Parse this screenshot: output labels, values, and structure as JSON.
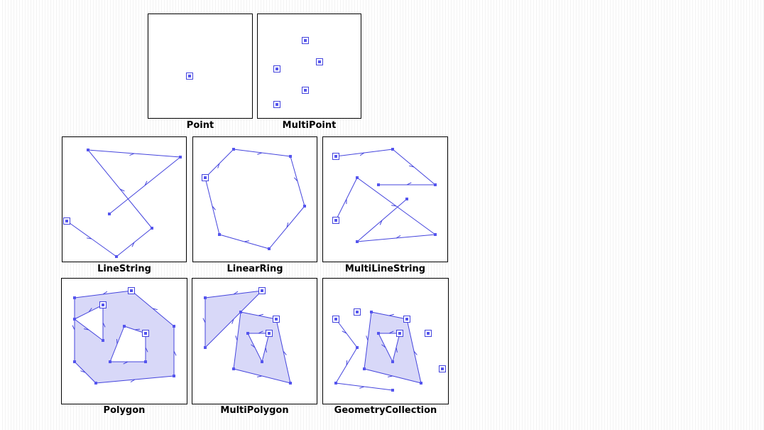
{
  "colors": {
    "stroke": "#4444dd",
    "fill": "#d8d8f8",
    "vertex": "#5555ee",
    "border": "#000000"
  },
  "panels": [
    {
      "id": "point",
      "label": "Point",
      "features": [
        {
          "type": "point",
          "coords": [
            [
              58,
              87
            ]
          ]
        }
      ]
    },
    {
      "id": "multipoint",
      "label": "MultiPoint",
      "features": [
        {
          "type": "point",
          "coords": [
            [
              67,
              37
            ],
            [
              87,
              67
            ],
            [
              27,
              77
            ],
            [
              67,
              107
            ],
            [
              27,
              127
            ]
          ]
        }
      ]
    },
    {
      "id": "linestring",
      "label": "LineString",
      "features": [
        {
          "type": "line",
          "coords": [
            [
              6,
              118
            ],
            [
              76,
              168
            ],
            [
              126,
              128
            ],
            [
              36,
              18
            ],
            [
              166,
              28
            ],
            [
              66,
              108
            ]
          ]
        }
      ]
    },
    {
      "id": "linearring",
      "label": "LinearRing",
      "features": [
        {
          "type": "line",
          "coords": [
            [
              17,
              57
            ],
            [
              57,
              17
            ],
            [
              137,
              27
            ],
            [
              157,
              97
            ],
            [
              107,
              157
            ],
            [
              37,
              137
            ],
            [
              17,
              57
            ]
          ]
        }
      ]
    },
    {
      "id": "multilinestring",
      "label": "MultiLineString",
      "features": [
        {
          "type": "line",
          "coords": [
            [
              18,
              27
            ],
            [
              98,
              17
            ],
            [
              158,
              67
            ],
            [
              78,
              67
            ]
          ]
        },
        {
          "type": "line",
          "coords": [
            [
              18,
              117
            ],
            [
              48,
              57
            ],
            [
              158,
              137
            ],
            [
              48,
              147
            ],
            [
              118,
              87
            ]
          ]
        }
      ]
    },
    {
      "id": "polygon",
      "label": "Polygon",
      "features": [
        {
          "type": "polygon",
          "rings": [
            [
              [
                98,
                17
              ],
              [
                18,
                27
              ],
              [
                18,
                117
              ],
              [
                48,
                147
              ],
              [
                158,
                137
              ],
              [
                158,
                67
              ],
              [
                98,
                17
              ]
            ],
            [
              [
                58,
                37
              ],
              [
                18,
                57
              ],
              [
                58,
                87
              ],
              [
                58,
                37
              ]
            ],
            [
              [
                118,
                77
              ],
              [
                88,
                67
              ],
              [
                68,
                117
              ],
              [
                118,
                117
              ],
              [
                118,
                77
              ]
            ]
          ]
        }
      ]
    },
    {
      "id": "multipolygon",
      "label": "MultiPolygon",
      "features": [
        {
          "type": "polygon",
          "rings": [
            [
              [
                98,
                17
              ],
              [
                18,
                27
              ],
              [
                18,
                97
              ],
              [
                98,
                17
              ]
            ]
          ]
        },
        {
          "type": "polygon",
          "rings": [
            [
              [
                118,
                57
              ],
              [
                68,
                47
              ],
              [
                58,
                127
              ],
              [
                138,
                147
              ],
              [
                118,
                57
              ]
            ],
            [
              [
                108,
                77
              ],
              [
                78,
                77
              ],
              [
                98,
                117
              ],
              [
                108,
                77
              ]
            ]
          ]
        }
      ]
    },
    {
      "id": "geometrycollection",
      "label": "GeometryCollection",
      "features": [
        {
          "type": "polygon",
          "rings": [
            [
              [
                118,
                57
              ],
              [
                68,
                47
              ],
              [
                58,
                127
              ],
              [
                138,
                147
              ],
              [
                118,
                57
              ]
            ],
            [
              [
                108,
                77
              ],
              [
                78,
                77
              ],
              [
                98,
                117
              ],
              [
                108,
                77
              ]
            ]
          ]
        },
        {
          "type": "line",
          "coords": [
            [
              18,
              57
            ],
            [
              48,
              97
            ],
            [
              18,
              147
            ],
            [
              98,
              157
            ]
          ]
        },
        {
          "type": "point",
          "coords": [
            [
              48,
              47
            ],
            [
              148,
              77
            ],
            [
              168,
              127
            ]
          ]
        }
      ]
    }
  ]
}
